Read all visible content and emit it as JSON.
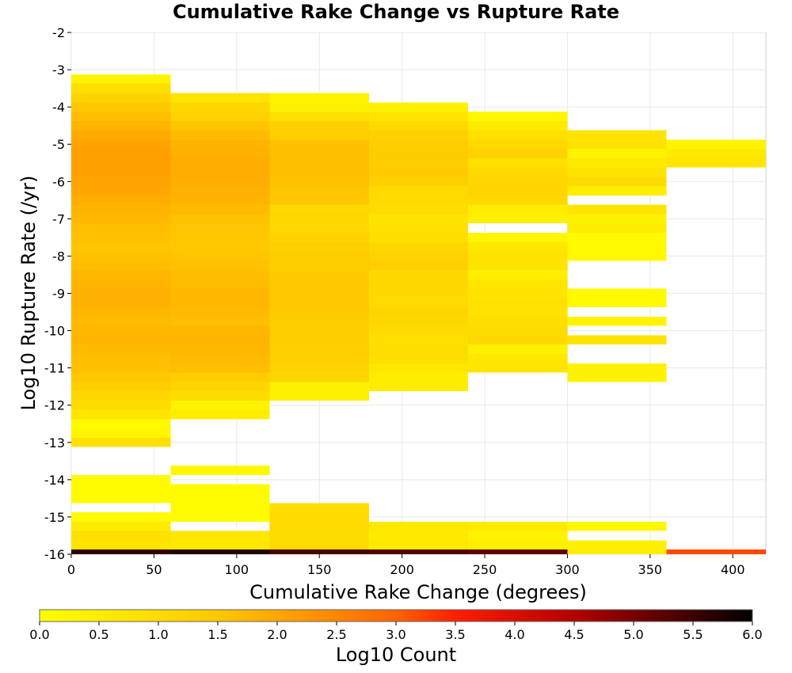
{
  "chart_data": {
    "type": "heatmap",
    "title": "Cumulative Rake Change vs Rupture Rate",
    "xlabel": "Cumulative Rake Change (degrees)",
    "ylabel": "Log10 Rupture Rate (/yr)",
    "xlim": [
      0,
      420
    ],
    "ylim": [
      -16,
      -2
    ],
    "x_ticks": [
      0,
      50,
      100,
      150,
      200,
      250,
      300,
      350,
      400
    ],
    "y_ticks": [
      -16,
      -15,
      -14,
      -13,
      -12,
      -11,
      -10,
      -9,
      -8,
      -7,
      -6,
      -5,
      -4,
      -3,
      -2
    ],
    "grid": true,
    "x_bin_width": 60,
    "y_bin_height": 0.25,
    "colorbar": {
      "label": "Log10 Count",
      "range": [
        0,
        6
      ],
      "ticks": [
        "0.0",
        "0.5",
        "1.0",
        "1.5",
        "2.0",
        "2.5",
        "3.0",
        "3.5",
        "4.0",
        "4.5",
        "5.0",
        "5.5",
        "6.0"
      ],
      "colormap": [
        [
          0.0,
          "#ffff00"
        ],
        [
          0.25,
          "#ffc800"
        ],
        [
          0.5,
          "#ff6400"
        ],
        [
          0.583,
          "#ff1e00"
        ],
        [
          0.75,
          "#b40000"
        ],
        [
          1.0,
          "#000000"
        ]
      ]
    },
    "columns": [
      {
        "x": 0,
        "cells": [
          [
            -3.25,
            0.3
          ],
          [
            -3.5,
            0.9
          ],
          [
            -3.75,
            1.2
          ],
          [
            -4.0,
            1.5
          ],
          [
            -4.25,
            1.65
          ],
          [
            -4.5,
            1.8
          ],
          [
            -4.75,
            1.95
          ],
          [
            -5.0,
            2.05
          ],
          [
            -5.25,
            2.1
          ],
          [
            -5.5,
            2.1
          ],
          [
            -5.75,
            2.1
          ],
          [
            -6.0,
            2.05
          ],
          [
            -6.25,
            2.0
          ],
          [
            -6.5,
            1.9
          ],
          [
            -6.75,
            1.8
          ],
          [
            -7.0,
            1.75
          ],
          [
            -7.25,
            1.65
          ],
          [
            -7.5,
            1.6
          ],
          [
            -7.75,
            1.55
          ],
          [
            -8.0,
            1.6
          ],
          [
            -8.25,
            1.65
          ],
          [
            -8.5,
            1.75
          ],
          [
            -8.75,
            1.8
          ],
          [
            -9.0,
            1.85
          ],
          [
            -9.25,
            1.85
          ],
          [
            -9.5,
            1.75
          ],
          [
            -9.75,
            1.7
          ],
          [
            -10.0,
            1.75
          ],
          [
            -10.25,
            1.8
          ],
          [
            -10.5,
            1.7
          ],
          [
            -10.75,
            1.65
          ],
          [
            -11.0,
            1.6
          ],
          [
            -11.25,
            1.5
          ],
          [
            -11.5,
            1.3
          ],
          [
            -11.75,
            1.1
          ],
          [
            -12.0,
            0.95
          ],
          [
            -12.25,
            0.7
          ],
          [
            -12.5,
            0.15
          ],
          [
            -12.75,
            0.25
          ],
          [
            -13.0,
            0.85
          ],
          [
            -14.0,
            0.1
          ],
          [
            -14.25,
            0.1
          ],
          [
            -14.5,
            0.1
          ],
          [
            -15.0,
            0.1
          ],
          [
            -15.25,
            0.55
          ],
          [
            -15.5,
            0.85
          ],
          [
            -15.75,
            0.75
          ],
          [
            -16.0,
            5.6
          ]
        ]
      },
      {
        "x": 60,
        "cells": [
          [
            -3.75,
            0.75
          ],
          [
            -4.0,
            1.1
          ],
          [
            -4.25,
            1.25
          ],
          [
            -4.5,
            1.55
          ],
          [
            -4.75,
            1.7
          ],
          [
            -5.0,
            1.8
          ],
          [
            -5.25,
            1.85
          ],
          [
            -5.5,
            1.9
          ],
          [
            -5.75,
            1.9
          ],
          [
            -6.0,
            1.9
          ],
          [
            -6.25,
            1.85
          ],
          [
            -6.5,
            1.8
          ],
          [
            -6.75,
            1.7
          ],
          [
            -7.0,
            1.6
          ],
          [
            -7.25,
            1.55
          ],
          [
            -7.5,
            1.5
          ],
          [
            -7.75,
            1.5
          ],
          [
            -8.0,
            1.55
          ],
          [
            -8.25,
            1.6
          ],
          [
            -8.5,
            1.65
          ],
          [
            -8.75,
            1.7
          ],
          [
            -9.0,
            1.75
          ],
          [
            -9.25,
            1.75
          ],
          [
            -9.5,
            1.7
          ],
          [
            -9.75,
            1.65
          ],
          [
            -10.0,
            1.75
          ],
          [
            -10.25,
            1.8
          ],
          [
            -10.5,
            1.75
          ],
          [
            -10.75,
            1.7
          ],
          [
            -11.0,
            1.65
          ],
          [
            -11.25,
            1.35
          ],
          [
            -11.5,
            1.15
          ],
          [
            -11.75,
            0.95
          ],
          [
            -12.0,
            0.3
          ],
          [
            -12.25,
            0.5
          ],
          [
            -13.75,
            0.2
          ],
          [
            -14.25,
            0.1
          ],
          [
            -14.5,
            0.1
          ],
          [
            -14.75,
            0.1
          ],
          [
            -15.0,
            0.1
          ],
          [
            -15.5,
            0.65
          ],
          [
            -15.75,
            0.65
          ],
          [
            -16.0,
            5.7
          ]
        ]
      },
      {
        "x": 120,
        "cells": [
          [
            -3.75,
            0.3
          ],
          [
            -4.0,
            0.35
          ],
          [
            -4.25,
            0.85
          ],
          [
            -4.5,
            1.25
          ],
          [
            -4.75,
            1.3
          ],
          [
            -5.0,
            1.6
          ],
          [
            -5.25,
            1.65
          ],
          [
            -5.5,
            1.65
          ],
          [
            -5.75,
            1.65
          ],
          [
            -6.0,
            1.6
          ],
          [
            -6.25,
            1.55
          ],
          [
            -6.5,
            1.5
          ],
          [
            -6.75,
            1.05
          ],
          [
            -7.0,
            1.1
          ],
          [
            -7.25,
            1.05
          ],
          [
            -7.5,
            1.2
          ],
          [
            -7.75,
            1.35
          ],
          [
            -8.0,
            1.4
          ],
          [
            -8.25,
            1.35
          ],
          [
            -8.5,
            1.4
          ],
          [
            -8.75,
            1.5
          ],
          [
            -9.0,
            1.45
          ],
          [
            -9.25,
            1.5
          ],
          [
            -9.5,
            1.45
          ],
          [
            -9.75,
            1.4
          ],
          [
            -10.0,
            1.35
          ],
          [
            -10.25,
            1.35
          ],
          [
            -10.5,
            1.3
          ],
          [
            -10.75,
            1.3
          ],
          [
            -11.0,
            1.2
          ],
          [
            -11.25,
            1.1
          ],
          [
            -11.5,
            0.35
          ],
          [
            -11.75,
            0.45
          ],
          [
            -14.75,
            0.9
          ],
          [
            -15.0,
            1.0
          ],
          [
            -15.25,
            1.0
          ],
          [
            -15.5,
            0.95
          ],
          [
            -15.75,
            1.0
          ],
          [
            -16.0,
            5.4
          ]
        ]
      },
      {
        "x": 180,
        "cells": [
          [
            -4.0,
            0.35
          ],
          [
            -4.25,
            0.7
          ],
          [
            -4.5,
            1.05
          ],
          [
            -4.75,
            1.25
          ],
          [
            -5.0,
            1.35
          ],
          [
            -5.25,
            1.4
          ],
          [
            -5.5,
            1.35
          ],
          [
            -5.75,
            1.4
          ],
          [
            -6.0,
            1.3
          ],
          [
            -6.25,
            1.05
          ],
          [
            -6.5,
            1.0
          ],
          [
            -6.75,
            0.95
          ],
          [
            -7.0,
            0.7
          ],
          [
            -7.25,
            0.85
          ],
          [
            -7.5,
            0.9
          ],
          [
            -7.75,
            1.1
          ],
          [
            -8.0,
            1.2
          ],
          [
            -8.25,
            1.3
          ],
          [
            -8.5,
            1.05
          ],
          [
            -8.75,
            1.1
          ],
          [
            -9.0,
            1.05
          ],
          [
            -9.25,
            1.0
          ],
          [
            -9.5,
            1.15
          ],
          [
            -9.75,
            1.1
          ],
          [
            -10.0,
            1.0
          ],
          [
            -10.25,
            0.85
          ],
          [
            -10.5,
            0.95
          ],
          [
            -10.75,
            0.9
          ],
          [
            -11.0,
            0.65
          ],
          [
            -11.25,
            0.5
          ],
          [
            -11.5,
            0.5
          ],
          [
            -15.25,
            0.6
          ],
          [
            -15.5,
            0.55
          ],
          [
            -15.75,
            0.6
          ],
          [
            -16.0,
            5.3
          ]
        ]
      },
      {
        "x": 240,
        "cells": [
          [
            -4.25,
            0.25
          ],
          [
            -4.5,
            0.55
          ],
          [
            -4.75,
            0.85
          ],
          [
            -5.0,
            1.05
          ],
          [
            -5.25,
            1.2
          ],
          [
            -5.5,
            0.85
          ],
          [
            -5.75,
            1.05
          ],
          [
            -6.0,
            1.1
          ],
          [
            -6.25,
            1.15
          ],
          [
            -6.5,
            1.05
          ],
          [
            -6.75,
            0.5
          ],
          [
            -7.0,
            0.45
          ],
          [
            -7.5,
            0.25
          ],
          [
            -7.75,
            0.65
          ],
          [
            -8.0,
            0.75
          ],
          [
            -8.25,
            0.75
          ],
          [
            -8.5,
            0.45
          ],
          [
            -8.75,
            0.7
          ],
          [
            -9.0,
            0.75
          ],
          [
            -9.25,
            0.85
          ],
          [
            -9.5,
            0.8
          ],
          [
            -9.75,
            0.9
          ],
          [
            -10.0,
            0.95
          ],
          [
            -10.25,
            1.05
          ],
          [
            -10.5,
            0.35
          ],
          [
            -10.75,
            0.65
          ],
          [
            -11.0,
            0.7
          ],
          [
            -15.25,
            0.55
          ],
          [
            -15.5,
            0.3
          ],
          [
            -15.75,
            0.45
          ],
          [
            -16.0,
            5.2
          ]
        ]
      },
      {
        "x": 300,
        "cells": [
          [
            -4.75,
            0.75
          ],
          [
            -5.0,
            0.8
          ],
          [
            -5.25,
            0.3
          ],
          [
            -5.5,
            0.55
          ],
          [
            -5.75,
            0.75
          ],
          [
            -6.0,
            0.95
          ],
          [
            -6.25,
            0.5
          ],
          [
            -6.75,
            0.75
          ],
          [
            -7.0,
            0.35
          ],
          [
            -7.25,
            0.5
          ],
          [
            -7.5,
            0.15
          ],
          [
            -7.75,
            0.2
          ],
          [
            -8.0,
            0.2
          ],
          [
            -9.0,
            0.15
          ],
          [
            -9.25,
            0.15
          ],
          [
            -9.75,
            0.3
          ],
          [
            -10.25,
            0.75
          ],
          [
            -11.0,
            0.35
          ],
          [
            -11.25,
            0.35
          ],
          [
            -15.25,
            0.2
          ],
          [
            -15.75,
            0.45
          ],
          [
            -16.0,
            0.5
          ]
        ]
      },
      {
        "x": 360,
        "cells": [
          [
            -5.0,
            0.3
          ],
          [
            -5.25,
            0.6
          ],
          [
            -5.5,
            0.7
          ],
          [
            -16.0,
            3.2
          ]
        ]
      }
    ]
  }
}
